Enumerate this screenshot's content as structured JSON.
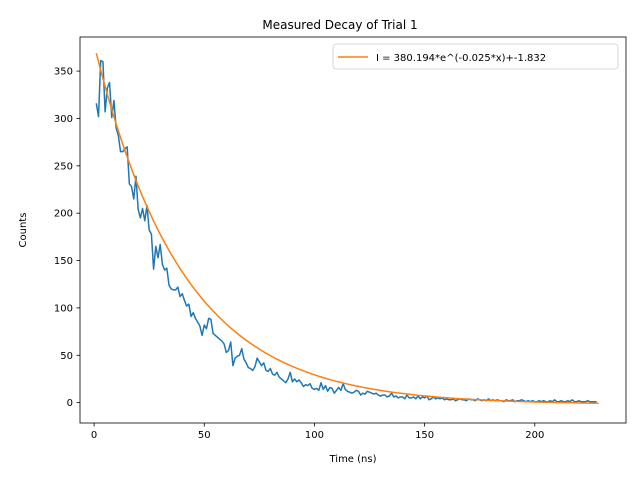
{
  "chart_data": {
    "type": "line",
    "title": "Measured Decay of Trial 1",
    "xlabel": "Time (ns)",
    "ylabel": "Counts",
    "xlim": [
      -6.4,
      241.4
    ],
    "ylim": [
      -21.5,
      386.0
    ],
    "xticks": [
      0,
      50,
      100,
      150,
      200
    ],
    "yticks": [
      0,
      50,
      100,
      150,
      200,
      250,
      300,
      350
    ],
    "grid": false,
    "legend_position": "upper right",
    "series": [
      {
        "name": "",
        "role": "measured",
        "color": "#1f77b4",
        "x_start": 1,
        "x_step": 1,
        "y": [
          316,
          302,
          361,
          360,
          307,
          332,
          338,
          301,
          319,
          290,
          282,
          265,
          265,
          268,
          270,
          231,
          228,
          215,
          239,
          204,
          195,
          205,
          192,
          208,
          182,
          178,
          141,
          165,
          153,
          167,
          146,
          140,
          142,
          124,
          120,
          119,
          119,
          122,
          112,
          115,
          108,
          102,
          104,
          91,
          95,
          89,
          85,
          81,
          71,
          82,
          78,
          89,
          88,
          73,
          71,
          69,
          67,
          65,
          62,
          53,
          55,
          64,
          39,
          47,
          49,
          50,
          57,
          46,
          42,
          37,
          36,
          34,
          38,
          47,
          43,
          39,
          42,
          34,
          33,
          36,
          30,
          29,
          32,
          27,
          25,
          23,
          21,
          25,
          32,
          22,
          25,
          22,
          24,
          21,
          17,
          19,
          18,
          20,
          15,
          14,
          15,
          13,
          21,
          14,
          18,
          12,
          16,
          15,
          10,
          13,
          16,
          13,
          20,
          14,
          12,
          11,
          10,
          11,
          13,
          12,
          8,
          10,
          9,
          12,
          11,
          10,
          9,
          10,
          8,
          7,
          8,
          8,
          6,
          7,
          10,
          6,
          7,
          5,
          6,
          6,
          4,
          8,
          5,
          5,
          6,
          4,
          7,
          4,
          6,
          5,
          7,
          3,
          4,
          6,
          4,
          5,
          4,
          5,
          3,
          4,
          3,
          3,
          4,
          2,
          3,
          4,
          3,
          3,
          2,
          4,
          3,
          3,
          2,
          4,
          3,
          2,
          3,
          2,
          4,
          2,
          3,
          2,
          3,
          2,
          2,
          1,
          3,
          2,
          2,
          3,
          1,
          2,
          2,
          3,
          2,
          1,
          2,
          1,
          2,
          1,
          1,
          2,
          1,
          2,
          1,
          1,
          2,
          1,
          3,
          1,
          1,
          2,
          1,
          1,
          2,
          1,
          3,
          1,
          1,
          2,
          1,
          1,
          1,
          2,
          1,
          1,
          1,
          1
        ]
      },
      {
        "name": "I = 380.194*e^(-0.025*x)+-1.832",
        "role": "fit",
        "color": "#ff7f0e",
        "formula": {
          "A": 380.194,
          "k": -0.025,
          "c": -1.832
        },
        "x_range": [
          1,
          229
        ]
      }
    ]
  }
}
